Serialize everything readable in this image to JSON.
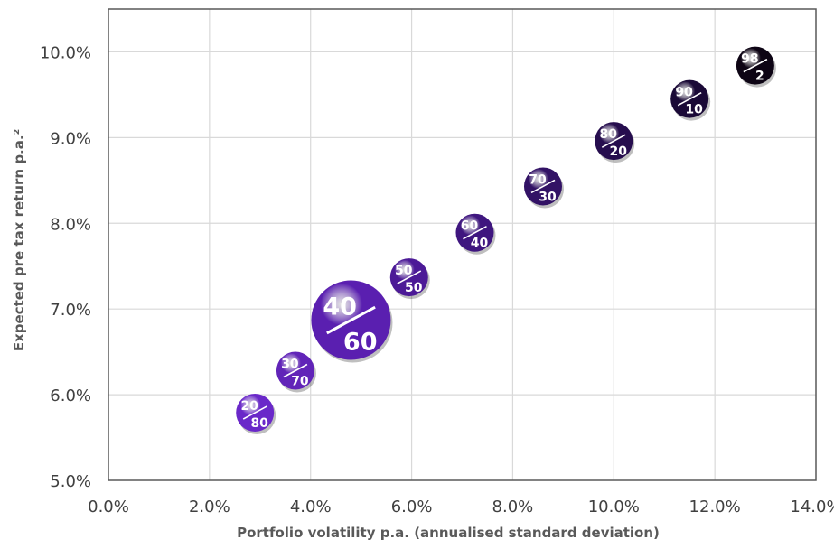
{
  "chart_data": {
    "type": "scatter",
    "title": "",
    "xlabel": "Portfolio volatility p.a. (annualised standard deviation)",
    "ylabel": "Expected pre tax return p.a.²",
    "xlim": [
      0,
      14
    ],
    "ylim": [
      5,
      10.5
    ],
    "x_ticks": [
      0,
      2,
      4,
      6,
      8,
      10,
      12,
      14
    ],
    "y_ticks": [
      5,
      6,
      7,
      8,
      9,
      10
    ],
    "x_tick_labels": [
      "0.0%",
      "2.0%",
      "4.0%",
      "6.0%",
      "8.0%",
      "10.0%",
      "12.0%",
      "14.0%"
    ],
    "y_tick_labels": [
      "5.0%",
      "6.0%",
      "7.0%",
      "8.0%",
      "9.0%",
      "10.0%"
    ],
    "grid": true,
    "points": [
      {
        "top": "20",
        "bottom": "80",
        "x": 2.9,
        "y": 5.79,
        "highlight": false,
        "color": "#6a28c9"
      },
      {
        "top": "30",
        "bottom": "70",
        "x": 3.7,
        "y": 6.28,
        "highlight": false,
        "color": "#6124b8"
      },
      {
        "top": "40",
        "bottom": "60",
        "x": 4.8,
        "y": 6.87,
        "highlight": true,
        "color": "#5a1fb0"
      },
      {
        "top": "50",
        "bottom": "50",
        "x": 5.95,
        "y": 7.37,
        "highlight": false,
        "color": "#4c1a97"
      },
      {
        "top": "60",
        "bottom": "40",
        "x": 7.25,
        "y": 7.89,
        "highlight": false,
        "color": "#3f167f"
      },
      {
        "top": "70",
        "bottom": "30",
        "x": 8.6,
        "y": 8.43,
        "highlight": false,
        "color": "#321265"
      },
      {
        "top": "80",
        "bottom": "20",
        "x": 10.0,
        "y": 8.96,
        "highlight": false,
        "color": "#260d4e"
      },
      {
        "top": "90",
        "bottom": "10",
        "x": 11.5,
        "y": 9.45,
        "highlight": false,
        "color": "#1a0936"
      },
      {
        "top": "98",
        "bottom": "2",
        "x": 12.8,
        "y": 9.84,
        "highlight": false,
        "color": "#0d0414"
      }
    ]
  }
}
